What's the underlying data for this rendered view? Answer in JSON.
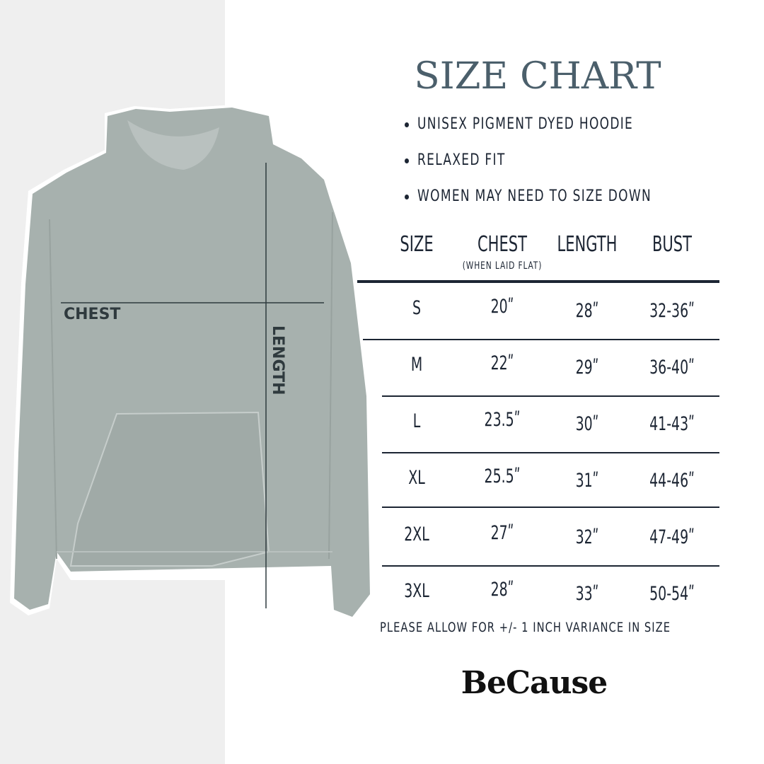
{
  "title": "SIZE CHART",
  "bullets": [
    "UNISEX PIGMENT DYED HOODIE",
    "RELAXED FIT",
    "WOMEN MAY NEED TO SIZE DOWN"
  ],
  "table": {
    "headers": [
      "SIZE",
      "CHEST",
      "LENGTH",
      "BUST"
    ],
    "chest_note": "(WHEN LAID FLAT)",
    "rows": [
      [
        "S",
        "20ʺ",
        "28ʺ",
        "32-36ʺ"
      ],
      [
        "M",
        "22ʺ",
        "29ʺ",
        "36-40ʺ"
      ],
      [
        "L",
        "23.5ʺ",
        "30ʺ",
        "41-43ʺ"
      ],
      [
        "XL",
        "25.5ʺ",
        "31ʺ",
        "44-46ʺ"
      ],
      [
        "2XL",
        "27ʺ",
        "32ʺ",
        "47-49ʺ"
      ],
      [
        "3XL",
        "28ʺ",
        "33ʺ",
        "50-54ʺ"
      ]
    ]
  },
  "note": "PLEASE ALLOW FOR +/- 1 INCH VARIANCE IN SIZE",
  "brand": "BeCause",
  "image_labels": {
    "chest": "CHEST",
    "length": "LENGTH"
  },
  "colors": {
    "title": "#4b5f6b",
    "text": "#1c2533",
    "hoodie": "#a7b1ae",
    "left_bg": "#efefef"
  }
}
